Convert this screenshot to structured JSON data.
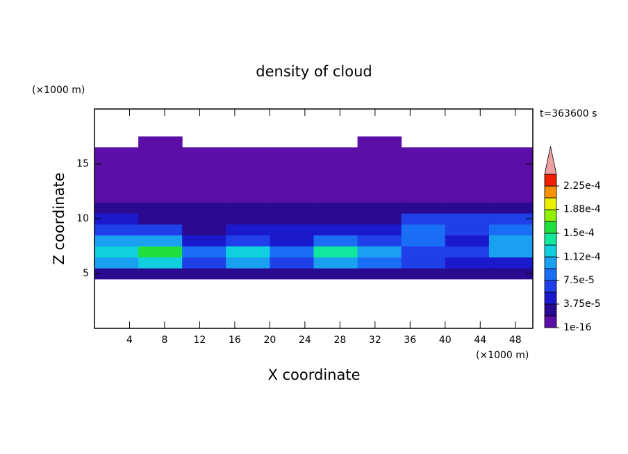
{
  "chart_data": {
    "type": "contour",
    "title": "density of cloud",
    "x_label": "X coordinate",
    "y_label": "Z coordinate",
    "x_unit": "(×1000 m)",
    "y_unit": "(×1000 m)",
    "time_label": "t=363600 s",
    "xlim": [
      0,
      50
    ],
    "ylim": [
      0,
      20
    ],
    "xticks": [
      4,
      8,
      12,
      16,
      20,
      24,
      28,
      32,
      36,
      40,
      44,
      48
    ],
    "yticks": [
      5,
      10,
      15
    ],
    "x": [
      2.5,
      7.5,
      12.5,
      17.5,
      22.5,
      27.5,
      32.5,
      37.5,
      42.5,
      47.5
    ],
    "y": [
      5,
      6,
      7,
      8,
      9,
      10,
      11,
      12,
      13,
      14,
      15,
      16,
      17
    ],
    "z": [
      [
        3e-05,
        3e-05,
        2e-05,
        3e-05,
        2e-05,
        3e-05,
        3e-05,
        2e-05,
        2e-05,
        2e-05
      ],
      [
        0.00011,
        0.00012,
        7e-05,
        0.0001,
        6e-05,
        0.0001,
        8e-05,
        6e-05,
        4e-05,
        5e-05
      ],
      [
        0.00013,
        0.00016,
        9e-05,
        0.00013,
        8e-05,
        0.00014,
        0.00011,
        7e-05,
        6e-05,
        0.00011
      ],
      [
        0.0001,
        0.00011,
        4e-05,
        7e-05,
        5e-05,
        8e-05,
        7e-05,
        8e-05,
        5e-05,
        0.0001
      ],
      [
        7e-05,
        6e-05,
        3e-05,
        4e-05,
        4e-05,
        4e-05,
        5e-05,
        8e-05,
        6e-05,
        8e-05
      ],
      [
        4e-05,
        2.5e-05,
        2.5e-05,
        2.5e-05,
        2.5e-05,
        2.5e-05,
        2.5e-05,
        6e-05,
        6e-05,
        6e-05
      ],
      [
        2.5e-05,
        2.5e-05,
        2.5e-05,
        2.5e-05,
        2.5e-05,
        2.5e-05,
        2.5e-05,
        2.5e-05,
        2.5e-05,
        2.5e-05
      ],
      [
        1.2e-05,
        1.2e-05,
        1.5e-05,
        1.2e-05,
        1.2e-05,
        1.2e-05,
        1.5e-05,
        1.2e-05,
        1.5e-05,
        1.2e-05
      ],
      [
        5e-06,
        5e-06,
        5e-06,
        5e-06,
        5e-06,
        5e-06,
        5e-06,
        5e-06,
        5e-06,
        5e-06
      ],
      [
        5e-06,
        5e-06,
        5e-06,
        5e-06,
        5e-06,
        5e-06,
        5e-06,
        5e-06,
        5e-06,
        5e-06
      ],
      [
        5e-06,
        5e-06,
        5e-06,
        5e-06,
        5e-06,
        5e-06,
        5e-06,
        5e-06,
        5e-06,
        5e-06
      ],
      [
        5e-06,
        5e-06,
        5e-06,
        5e-06,
        5e-06,
        5e-06,
        5e-06,
        5e-06,
        5e-06,
        5e-06
      ],
      [
        null,
        5e-06,
        null,
        null,
        null,
        null,
        5e-06,
        null,
        null,
        null
      ]
    ],
    "levels": [
      1e-16,
      1.875e-05,
      3.75e-05,
      5.625e-05,
      7.5e-05,
      9.375e-05,
      0.0001125,
      0.00013125,
      0.00015,
      0.00016875,
      0.0001875,
      0.00020625,
      0.000225,
      0.00024375
    ],
    "level_colors": [
      "#5b0fa6",
      "#2a0a90",
      "#1a1acc",
      "#1f3fe8",
      "#1a6ef5",
      "#1aa0f0",
      "#10d0e0",
      "#10e8a0",
      "#20e040",
      "#90f000",
      "#e8f000",
      "#f89000",
      "#f02000"
    ],
    "over_color": "#f0a0a0",
    "colorbar_ticks": [
      {
        "value": 1e-16,
        "label": "1e-16"
      },
      {
        "value": 3.75e-05,
        "label": "3.75e-5"
      },
      {
        "value": 7.5e-05,
        "label": "7.5e-5"
      },
      {
        "value": 0.000112,
        "label": "1.12e-4"
      },
      {
        "value": 0.00015,
        "label": "1.5e-4"
      },
      {
        "value": 0.000188,
        "label": "1.88e-4"
      },
      {
        "value": 0.000225,
        "label": "2.25e-4"
      }
    ]
  }
}
